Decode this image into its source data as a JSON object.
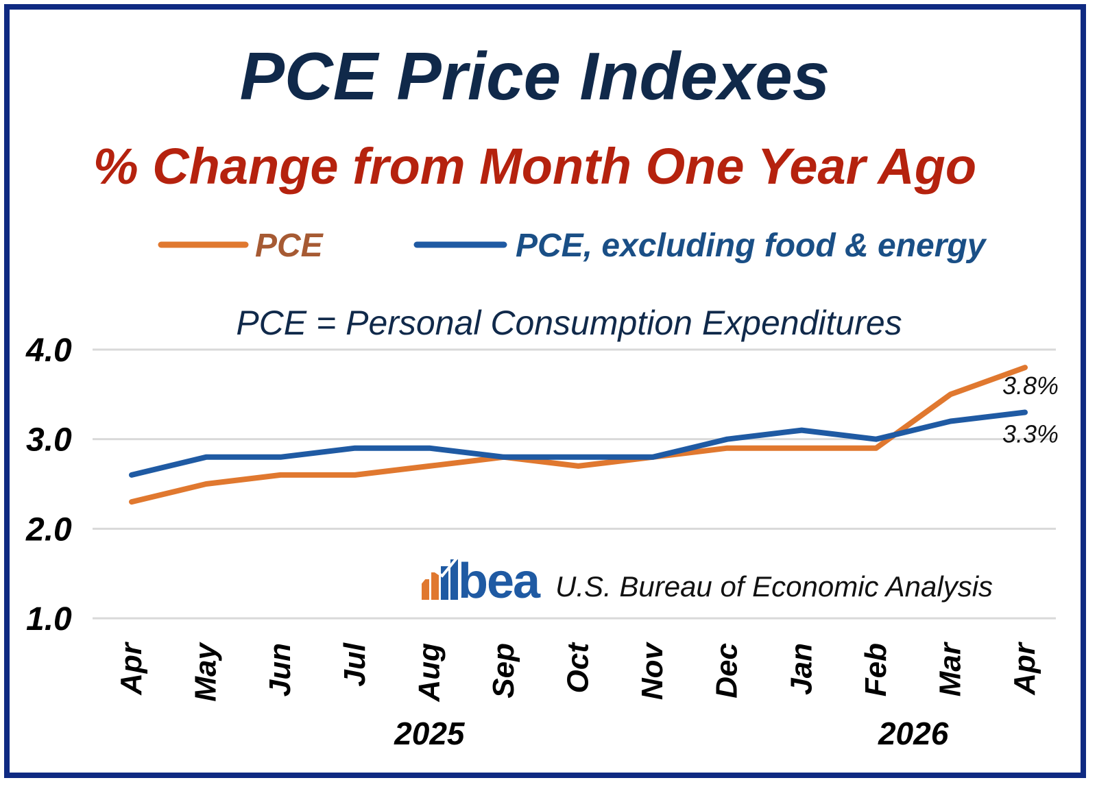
{
  "colors": {
    "border": "#0f2a82",
    "title": "#10294a",
    "subtitle": "#b5220e",
    "pce": "#e0782f",
    "pce_legend_text": "#a65a33",
    "core": "#1f5aa3",
    "core_legend_text": "#1a4f86",
    "grid": "#d9d9d9",
    "axis_text": "#000000",
    "note_text": "#10294a"
  },
  "chart_data": {
    "type": "line",
    "title": "PCE Price Indexes",
    "subtitle": "% Change from Month One Year Ago",
    "note": "PCE = Personal Consumption Expenditures",
    "source": "U.S. Bureau of Economic Analysis",
    "logo_text": "bea",
    "categories": [
      "Apr",
      "May",
      "Jun",
      "Jul",
      "Aug",
      "Sep",
      "Oct",
      "Nov",
      "Dec",
      "Jan",
      "Feb",
      "Mar",
      "Apr"
    ],
    "year_labels": [
      {
        "label": "2025",
        "at_category": 4
      },
      {
        "label": "2026",
        "at_category": 10.5
      }
    ],
    "yticks": [
      1.0,
      2.0,
      3.0,
      4.0
    ],
    "ytick_labels": [
      "1.0",
      "2.0",
      "3.0",
      "4.0"
    ],
    "ylim": [
      1.0,
      4.0
    ],
    "grid": true,
    "legend_position": "top",
    "series": [
      {
        "name": "PCE",
        "color": "#e0782f",
        "legend_color": "#a65a33",
        "end_label": "3.8%",
        "values": [
          2.3,
          2.5,
          2.6,
          2.6,
          2.7,
          2.8,
          2.7,
          2.8,
          2.9,
          2.9,
          2.9,
          3.5,
          3.8
        ]
      },
      {
        "name": "PCE, excluding food & energy",
        "color": "#1f5aa3",
        "legend_color": "#1a4f86",
        "end_label": "3.3%",
        "values": [
          2.6,
          2.8,
          2.8,
          2.9,
          2.9,
          2.8,
          2.8,
          2.8,
          3.0,
          3.1,
          3.0,
          3.2,
          3.3
        ]
      }
    ]
  }
}
